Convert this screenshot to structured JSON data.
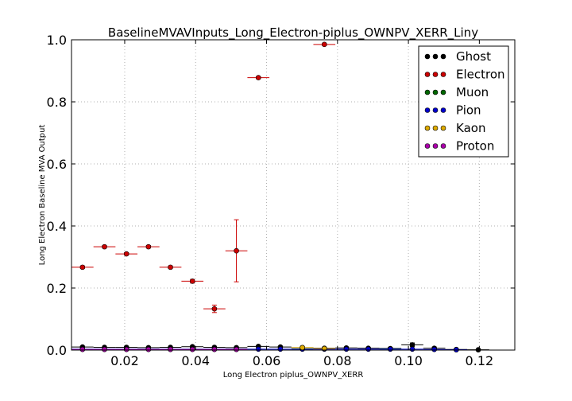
{
  "chart_data": {
    "type": "scatter",
    "title": "BaselineMVAVInputs_Long_Electron-piplus_OWNPV_XERR_Liny",
    "xlabel": "Long Electron piplus_OWNPV_XERR",
    "ylabel": "Long Electron Baseline MVA Output",
    "xlim": [
      0.005,
      0.13
    ],
    "ylim": [
      0.0,
      1.0
    ],
    "xticks": [
      "0.02",
      "0.04",
      "0.06",
      "0.08",
      "0.10",
      "0.12"
    ],
    "xtick_values": [
      0.02,
      0.04,
      0.06,
      0.08,
      0.1,
      0.12
    ],
    "yticks": [
      "0.0",
      "0.2",
      "0.4",
      "0.6",
      "0.8",
      "1.0"
    ],
    "ytick_values": [
      0.0,
      0.2,
      0.4,
      0.6,
      0.8,
      1.0
    ],
    "grid": true,
    "legend_position": "top-right",
    "bin_half_width": 0.0031,
    "series": [
      {
        "name": "Ghost",
        "color": "#000000",
        "x": [
          0.0081,
          0.0143,
          0.0205,
          0.0267,
          0.0329,
          0.0391,
          0.0453,
          0.0515,
          0.0577,
          0.0639,
          0.0701,
          0.0763,
          0.0825,
          0.0887,
          0.0949,
          0.1011,
          0.1073,
          0.1135,
          0.1197
        ],
        "y": [
          0.01,
          0.009,
          0.009,
          0.008,
          0.009,
          0.011,
          0.009,
          0.008,
          0.012,
          0.01,
          0.008,
          0.006,
          0.007,
          0.006,
          0.005,
          0.017,
          0.006,
          0.002,
          0.001
        ],
        "yerr": [
          0.002,
          0.002,
          0.002,
          0.002,
          0.002,
          0.002,
          0.002,
          0.002,
          0.003,
          0.003,
          0.003,
          0.003,
          0.003,
          0.003,
          0.004,
          0.006,
          0.004,
          0.002,
          0.001
        ]
      },
      {
        "name": "Electron",
        "color": "#cc0000",
        "x": [
          0.0081,
          0.0143,
          0.0205,
          0.0267,
          0.0329,
          0.0391,
          0.0453,
          0.0515,
          0.0577,
          0.0763
        ],
        "y": [
          0.267,
          0.333,
          0.31,
          0.333,
          0.267,
          0.222,
          0.133,
          0.32,
          0.878,
          0.985
        ],
        "yerr": [
          0.004,
          0.004,
          0.004,
          0.004,
          0.004,
          0.006,
          0.012,
          0.1,
          0.004,
          0.004
        ]
      },
      {
        "name": "Muon",
        "color": "#006600",
        "x": [
          0.0701,
          0.0949
        ],
        "y": [
          0.004,
          0.004
        ],
        "yerr": [
          0.001,
          0.001
        ]
      },
      {
        "name": "Pion",
        "color": "#0000cc",
        "x": [
          0.0081,
          0.0143,
          0.0205,
          0.0267,
          0.0329,
          0.0391,
          0.0453,
          0.0515,
          0.0577,
          0.0639,
          0.0701,
          0.0763,
          0.0825,
          0.0887,
          0.0949,
          0.1011,
          0.1073,
          0.1135
        ],
        "y": [
          0.003,
          0.003,
          0.003,
          0.003,
          0.003,
          0.003,
          0.003,
          0.003,
          0.003,
          0.003,
          0.003,
          0.003,
          0.003,
          0.003,
          0.003,
          0.003,
          0.002,
          0.001
        ],
        "yerr": [
          0.001,
          0.001,
          0.001,
          0.001,
          0.001,
          0.001,
          0.001,
          0.001,
          0.001,
          0.001,
          0.001,
          0.001,
          0.001,
          0.001,
          0.001,
          0.001,
          0.001,
          0.001
        ]
      },
      {
        "name": "Kaon",
        "color": "#ddaa00",
        "x": [
          0.0701,
          0.0763
        ],
        "y": [
          0.008,
          0.005
        ],
        "yerr": [
          0.002,
          0.002
        ]
      },
      {
        "name": "Proton",
        "color": "#aa00aa",
        "x": [
          0.0081,
          0.0143,
          0.0205,
          0.0267,
          0.0329,
          0.0391,
          0.0453,
          0.0515
        ],
        "y": [
          0.002,
          0.002,
          0.002,
          0.002,
          0.002,
          0.002,
          0.002,
          0.002
        ],
        "yerr": [
          0.001,
          0.001,
          0.001,
          0.001,
          0.001,
          0.001,
          0.001,
          0.001
        ]
      }
    ]
  }
}
